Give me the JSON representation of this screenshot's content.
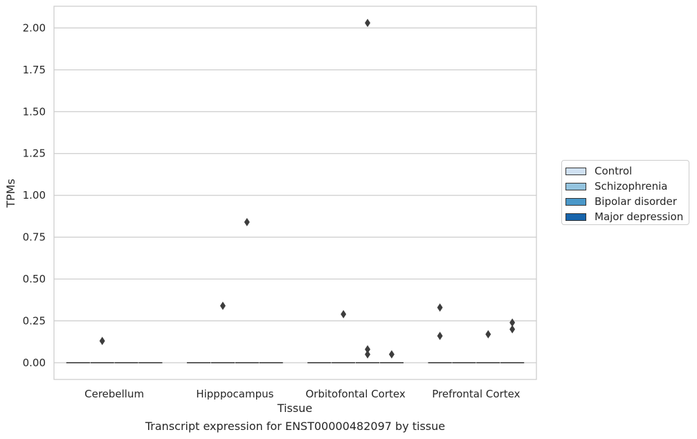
{
  "caption": "Transcript expression for ENST00000482097 by tissue",
  "chart_data": {
    "type": "box",
    "title": "",
    "xlabel": "Tissue",
    "ylabel": "TPMs",
    "ylim": [
      -0.1,
      2.13
    ],
    "yticks": [
      "0.00",
      "0.25",
      "0.50",
      "0.75",
      "1.00",
      "1.25",
      "1.50",
      "1.75",
      "2.00"
    ],
    "grid": true,
    "legend_position": "right",
    "categories": [
      "Cerebellum",
      "Hipppocampus",
      "Orbitofontal Cortex",
      "Prefrontal Cortex"
    ],
    "series": [
      {
        "name": "Control",
        "color": "#d0e1f2"
      },
      {
        "name": "Schizophrenia",
        "color": "#94c4df"
      },
      {
        "name": "Bipolar disorder",
        "color": "#4a98c9"
      },
      {
        "name": "Major depression",
        "color": "#1764ab"
      }
    ],
    "median": [
      0,
      0,
      0,
      0
    ],
    "outliers": [
      {
        "category": "Cerebellum",
        "series": "Schizophrenia",
        "values": [
          0.13
        ]
      },
      {
        "category": "Hipppocampus",
        "series": "Schizophrenia",
        "values": [
          0.34
        ]
      },
      {
        "category": "Hipppocampus",
        "series": "Bipolar disorder",
        "values": [
          0.84
        ]
      },
      {
        "category": "Orbitofontal Cortex",
        "series": "Schizophrenia",
        "values": [
          0.29
        ]
      },
      {
        "category": "Orbitofontal Cortex",
        "series": "Bipolar disorder",
        "values": [
          2.03,
          0.08,
          0.05
        ]
      },
      {
        "category": "Orbitofontal Cortex",
        "series": "Major depression",
        "values": [
          0.05
        ]
      },
      {
        "category": "Prefrontal Cortex",
        "series": "Control",
        "values": [
          0.33,
          0.16
        ]
      },
      {
        "category": "Prefrontal Cortex",
        "series": "Bipolar disorder",
        "values": [
          0.17
        ]
      },
      {
        "category": "Prefrontal Cortex",
        "series": "Major depression",
        "values": [
          0.24,
          0.2
        ]
      }
    ]
  }
}
